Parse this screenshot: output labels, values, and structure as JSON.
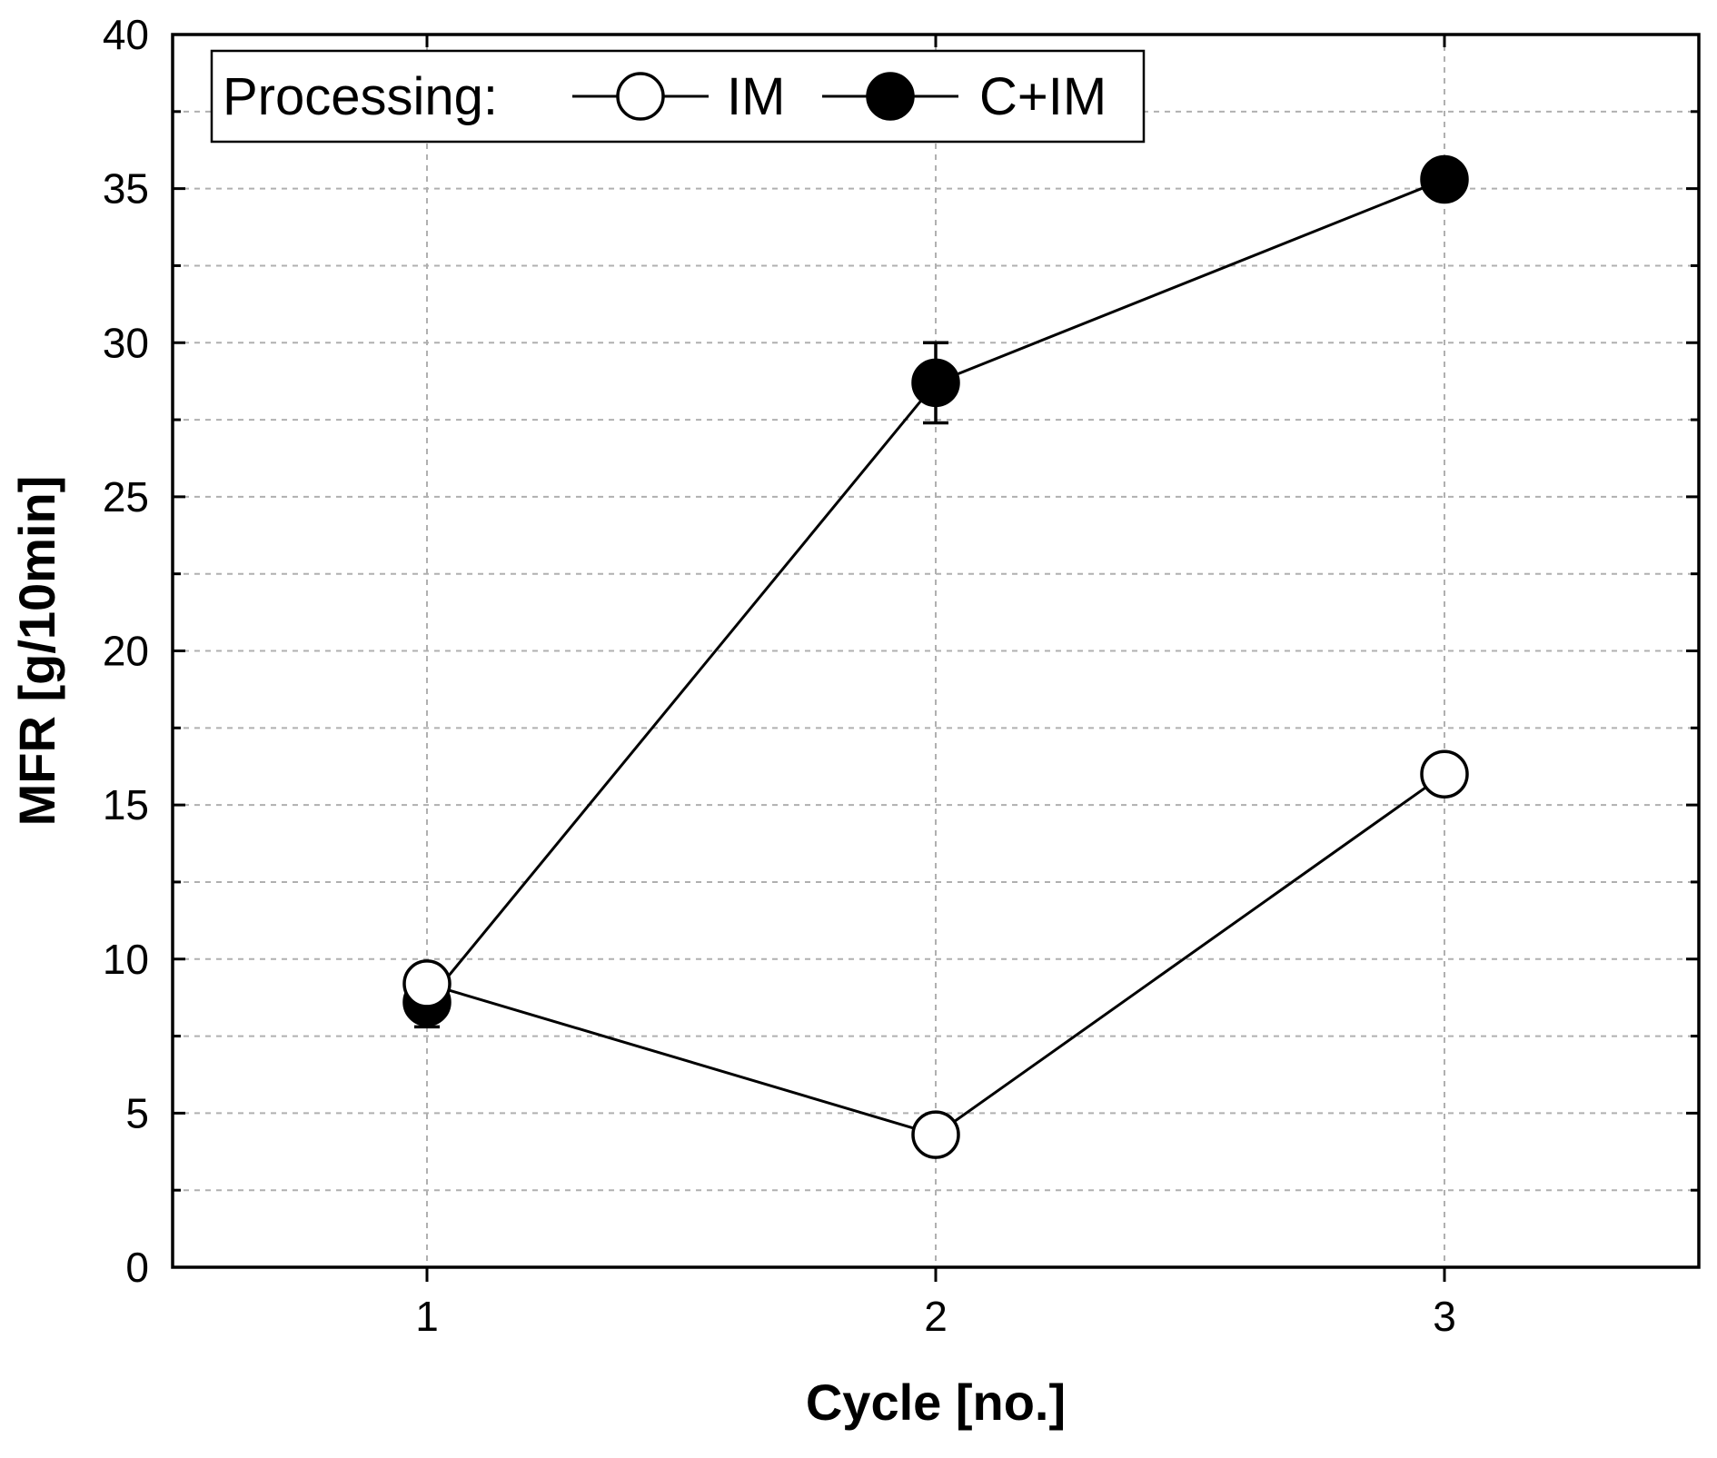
{
  "chart_data": {
    "type": "line",
    "xlabel": "Cycle [no.]",
    "ylabel": "MFR [g/10min]",
    "x": [
      1,
      2,
      3
    ],
    "x_ticks": [
      "1",
      "2",
      "3"
    ],
    "xlim": [
      0.5,
      3.5
    ],
    "ylim": [
      0,
      40
    ],
    "y_ticks": [
      "0",
      "5",
      "10",
      "15",
      "20",
      "25",
      "30",
      "35",
      "40"
    ],
    "y_tick_values": [
      0,
      5,
      10,
      15,
      20,
      25,
      30,
      35,
      40
    ],
    "grid": true,
    "legend": {
      "title": "Processing:",
      "placement": "top-left"
    },
    "series": [
      {
        "name": "IM",
        "marker": "open-circle",
        "values": [
          9.2,
          4.3,
          16.0
        ],
        "errors": [
          null,
          null,
          null
        ]
      },
      {
        "name": "C+IM",
        "marker": "filled-circle",
        "values": [
          8.6,
          28.7,
          35.3
        ],
        "errors": [
          0.8,
          1.3,
          null
        ]
      }
    ]
  }
}
